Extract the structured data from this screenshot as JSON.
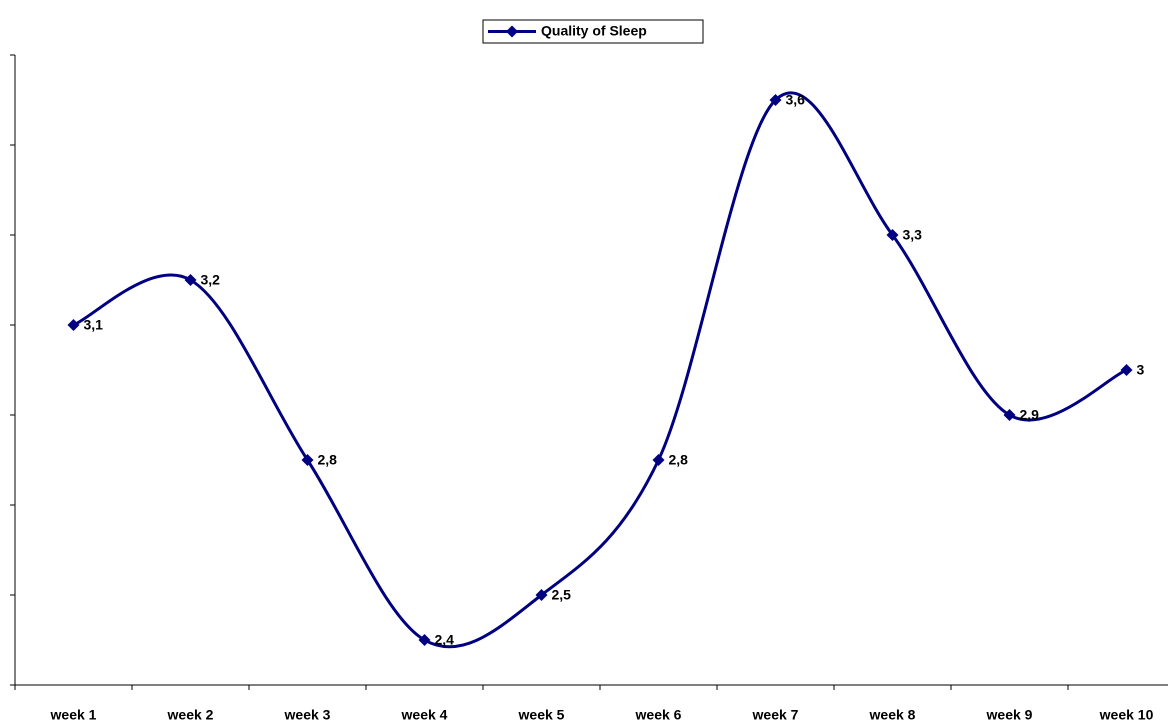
{
  "chart_data": {
    "type": "line",
    "categories": [
      "week 1",
      "week 2",
      "week 3",
      "week 4",
      "week 5",
      "week 6",
      "week 7",
      "week 8",
      "week 9",
      "week 10"
    ],
    "series": [
      {
        "name": "Quality of Sleep",
        "color": "#000080",
        "values": [
          3.1,
          3.2,
          2.8,
          2.4,
          2.5,
          2.8,
          3.6,
          3.3,
          2.9,
          3
        ],
        "value_labels": [
          "3,1",
          "3,2",
          "2,8",
          "2,4",
          "2,5",
          "2,8",
          "3,6",
          "3,3",
          "2,9",
          "3"
        ]
      }
    ],
    "ylim": [
      2.3,
      3.7
    ],
    "yticks": [
      2.3,
      2.5,
      2.7,
      2.9,
      3.1,
      3.3,
      3.5,
      3.7
    ],
    "smooth": true,
    "legend": "top"
  }
}
